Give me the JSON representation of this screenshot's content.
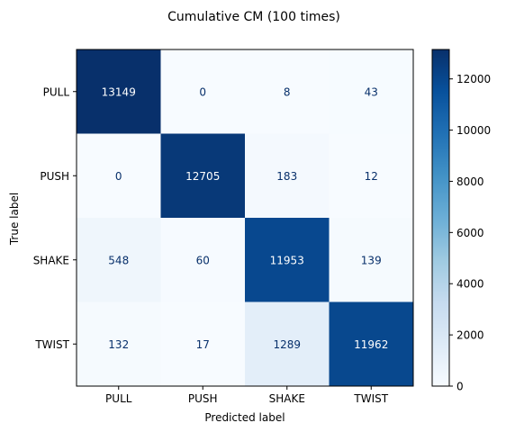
{
  "chart_data": {
    "type": "heatmap",
    "title": "Cumulative CM (100 times)",
    "xlabel": "Predicted label",
    "ylabel": "True label",
    "x_categories": [
      "PULL",
      "PUSH",
      "SHAKE",
      "TWIST"
    ],
    "y_categories": [
      "PULL",
      "PUSH",
      "SHAKE",
      "TWIST"
    ],
    "values": [
      [
        13149,
        0,
        8,
        43
      ],
      [
        0,
        12705,
        183,
        12
      ],
      [
        548,
        60,
        11953,
        139
      ],
      [
        132,
        17,
        1289,
        11962
      ]
    ],
    "colormap": "Blues",
    "colorbar": {
      "range": [
        0,
        13149
      ],
      "ticks": [
        0,
        2000,
        4000,
        6000,
        8000,
        10000,
        12000
      ]
    },
    "colors": {
      "low": "#f7fbff",
      "high": "#08306b",
      "light_text": "#ffffff",
      "dark_text": "#08306b"
    }
  }
}
